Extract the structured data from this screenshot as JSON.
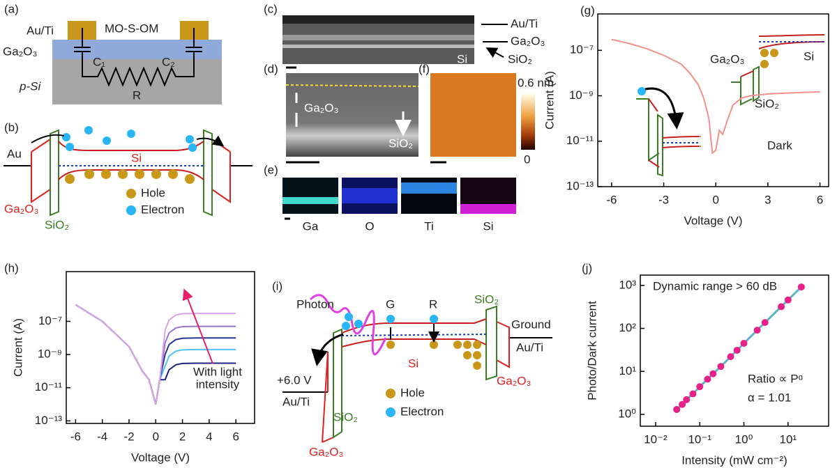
{
  "panels": {
    "a": {
      "label": "(a)",
      "electrode": "Au/Ti",
      "device": "MO-S-OM",
      "layer": "Ga₂O₃",
      "substrate": "p-Si",
      "c1": "C₁",
      "c2": "C₂",
      "r": "R"
    },
    "b": {
      "label": "(b)",
      "metal": "Au",
      "semiconductor": "Si",
      "oxide": "Ga₂O₃",
      "insulator": "SiO₂",
      "hole": "Hole",
      "electron": "Electron"
    },
    "c": {
      "label": "(c)",
      "layers": [
        "Au/Ti",
        "Ga₂O₃",
        "SiO₂"
      ],
      "substrate": "Si"
    },
    "d": {
      "label": "(d)",
      "layer": "Ga₂O₃",
      "interface": "SiO₂"
    },
    "e": {
      "label": "(e)",
      "elements": [
        "Ga",
        "O",
        "Ti",
        "Si"
      ]
    },
    "f": {
      "label": "(f)",
      "scale_max": "0.6 nm",
      "scale_min": "0"
    },
    "g": {
      "label": "(g)"
    },
    "h": {
      "label": "(h)"
    },
    "i": {
      "label": "(i)",
      "photon": "Photon",
      "generation": "G",
      "recombination": "R",
      "ground": "Ground",
      "right_contact": "Au/Ti",
      "bias": "+6.0 V",
      "left_contact": "Au/Ti",
      "semiconductor": "Si",
      "insulator_right": "SiO₂",
      "insulator_left": "SiO₂",
      "oxide_right": "Ga₂O₃",
      "oxide_left": "Ga₂O₃",
      "hole": "Hole",
      "electron": "Electron"
    },
    "j": {
      "label": "(j)"
    }
  },
  "chart_data": [
    {
      "type": "line",
      "xlabel": "Voltage (V)",
      "ylabel": "Current (A)",
      "ylog": true,
      "xlim": [
        -6.8,
        6.5
      ],
      "ylim": [
        1e-13,
        4e-06
      ],
      "xticks": [
        -6,
        -3,
        0,
        3,
        6
      ],
      "yticks": [
        {
          "value": 1e-13,
          "label": "10⁻¹³"
        },
        {
          "value": 1e-11,
          "label": "10⁻¹¹"
        },
        {
          "value": 1e-09,
          "label": "10⁻⁹"
        },
        {
          "value": 1e-07,
          "label": "10⁻⁷"
        }
      ],
      "x": [
        -6,
        -5,
        -4,
        -3,
        -2,
        -1.5,
        -1,
        -0.7,
        -0.4,
        -0.2,
        0,
        0.2,
        0.4,
        0.7,
        1,
        1.5,
        2,
        3,
        4,
        5,
        6
      ],
      "series": [
        {
          "color": "#f4908a",
          "values": [
            3e-07,
            2e-07,
            1.2e-07,
            6e-08,
            2.5e-08,
            1e-08,
            3e-09,
            8e-10,
            1e-10,
            3e-12,
            4e-12,
            3e-11,
            2e-11,
            1e-10,
            4e-10,
            8e-10,
            1e-09,
            1.2e-09,
            1.3e-09,
            1.4e-09,
            1.5e-09
          ]
        }
      ],
      "annotations": [
        "Dark",
        "Ga₂O₃",
        "Si",
        "SiO₂"
      ]
    },
    {
      "type": "line",
      "xlabel": "Voltage (V)",
      "ylabel": "Current (A)",
      "ylog": true,
      "xlim": [
        -6.7,
        7.4
      ],
      "ylim": [
        7e-14,
        0.0001
      ],
      "xticks": [
        -6,
        -4,
        -2,
        0,
        2,
        4,
        6
      ],
      "yticks": [
        {
          "value": 1e-13,
          "label": "10⁻¹³"
        },
        {
          "value": 1e-11,
          "label": "10⁻¹¹"
        },
        {
          "value": 1e-09,
          "label": "10⁻⁹"
        },
        {
          "value": 1e-07,
          "label": "10⁻⁷"
        }
      ],
      "x": [
        -6,
        -4,
        -2,
        -1,
        -0.5,
        0,
        0.3,
        0.7,
        1,
        1.5,
        2,
        3,
        4,
        6
      ],
      "series": [
        {
          "color": "#1a237e",
          "values": [
            1e-06,
            1e-07,
            3e-09,
            1e-10,
            3e-11,
            1e-12,
            3e-11,
            3e-11,
            1.2e-10,
            2.4e-10,
            2.9e-10,
            3e-10,
            3e-10,
            3e-10
          ]
        },
        {
          "color": "#4fc3f7",
          "values": [
            1e-06,
            1e-07,
            3e-09,
            1e-10,
            3e-11,
            1e-12,
            3e-11,
            2e-10,
            8e-10,
            1.6e-09,
            1.9e-09,
            2e-09,
            2e-09,
            2e-09
          ]
        },
        {
          "color": "#283593",
          "values": [
            1e-06,
            1e-07,
            3e-09,
            1e-10,
            3e-11,
            1e-12,
            3e-11,
            1e-09,
            4e-09,
            8e-09,
            9.5e-09,
            1e-08,
            1e-08,
            1e-08
          ]
        },
        {
          "color": "#9575cd",
          "values": [
            1e-06,
            1e-07,
            3e-09,
            1e-10,
            3e-11,
            1e-12,
            3e-11,
            5e-09,
            2e-08,
            4e-08,
            4.8e-08,
            5e-08,
            5e-08,
            5e-08
          ]
        },
        {
          "color": "#d9a3e6",
          "values": [
            1e-06,
            1e-07,
            3e-09,
            1e-10,
            3e-11,
            1e-12,
            3e-11,
            3e-08,
            1.2e-07,
            2.4e-07,
            2.9e-07,
            3e-07,
            3e-07,
            3e-07
          ]
        }
      ],
      "annotations": [
        "With light",
        "intensity"
      ]
    },
    {
      "type": "scatter",
      "xlabel": "Intensity (mW cm⁻²)",
      "ylabel": "Photo/Dark current",
      "xlog": true,
      "ylog": true,
      "xlim": [
        0.0045,
        83
      ],
      "ylim": [
        0.53,
        1740
      ],
      "xticks": [
        {
          "value": 0.01,
          "label": "10⁻²"
        },
        {
          "value": 0.1,
          "label": "10⁻¹"
        },
        {
          "value": 1,
          "label": "10⁰"
        },
        {
          "value": 10,
          "label": "10¹"
        }
      ],
      "yticks": [
        {
          "value": 1,
          "label": "10⁰"
        },
        {
          "value": 10,
          "label": "10¹"
        },
        {
          "value": 100,
          "label": "10²"
        },
        {
          "value": 1000,
          "label": "10³"
        }
      ],
      "x": [
        0.03,
        0.04,
        0.05,
        0.07,
        0.1,
        0.15,
        0.2,
        0.3,
        0.5,
        0.7,
        1,
        2,
        3,
        7,
        10,
        20
      ],
      "values": [
        1.3,
        1.7,
        2.2,
        3.0,
        4.4,
        6.6,
        8.8,
        13,
        22,
        31,
        45,
        91,
        137,
        320,
        460,
        920
      ],
      "color": "#e8208a",
      "line_color": "#5fb3c9",
      "annotations": [
        "Dynamic range > 60 dB",
        "Ratio ∝ Pᵅ",
        "α = 1.01"
      ]
    }
  ]
}
